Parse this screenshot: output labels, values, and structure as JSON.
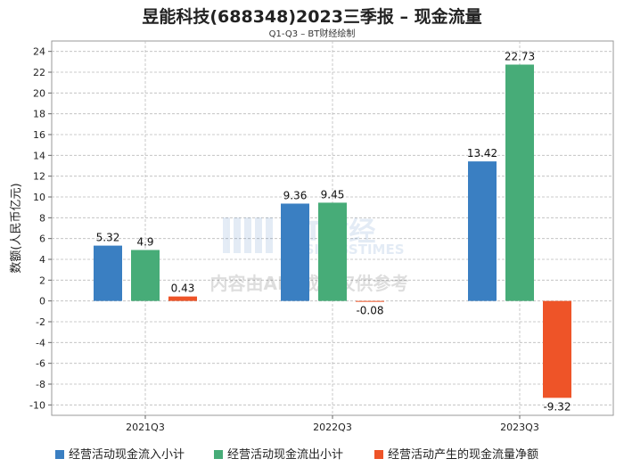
{
  "chart_data": {
    "type": "bar",
    "title": "昱能科技(688348)2023三季报 – 现金流量",
    "subtitle": "Q1-Q3 – BT财经绘制",
    "ylabel": "数额(人民币亿元)",
    "xlabel": "",
    "ylim": [
      -11,
      25
    ],
    "yticks": [
      24,
      22,
      20,
      18,
      16,
      14,
      12,
      10,
      8,
      6,
      4,
      2,
      0,
      -2,
      -4,
      -6,
      -8,
      -10
    ],
    "categories": [
      "2021Q3",
      "2022Q3",
      "2023Q3"
    ],
    "series": [
      {
        "name": "经营活动现金流入小计",
        "color": "#3a7fc2",
        "values": [
          5.32,
          9.36,
          13.42
        ],
        "labels": [
          "5.32",
          "9.36",
          "13.42"
        ]
      },
      {
        "name": "经营活动现金流出小计",
        "color": "#47ac78",
        "values": [
          4.9,
          9.45,
          22.73
        ],
        "labels": [
          "4.9",
          "9.45",
          "22.73"
        ]
      },
      {
        "name": "经营活动产生的现金流量净额",
        "color": "#ee5428",
        "values": [
          0.43,
          -0.08,
          -9.32
        ],
        "labels": [
          "0.43",
          "-0.08",
          "-9.32"
        ]
      }
    ],
    "grid": true,
    "legend_position": "bottom"
  },
  "watermark": {
    "brand": "BT财经",
    "brand_en": "BUSINESSTIMES",
    "notice": "内容由AI生成，仅供参考"
  }
}
